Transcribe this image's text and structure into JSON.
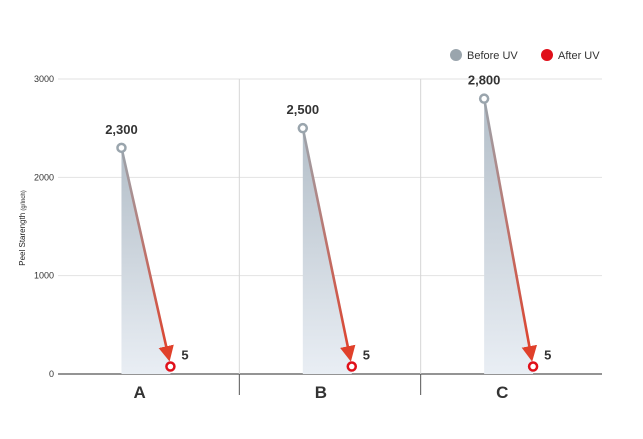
{
  "chart_data": {
    "type": "line",
    "title": "",
    "xlabel": "",
    "ylabel": "Peel Starength",
    "ylabel_unit": "(g/Inch)",
    "ylim": [
      0,
      3000
    ],
    "y_ticks": [
      "0",
      "1000",
      "2000",
      "3000"
    ],
    "categories": [
      "A",
      "B",
      "C"
    ],
    "series": [
      {
        "name": "Before UV",
        "values": [
          2300,
          2500,
          2800
        ],
        "labels": [
          "2,300",
          "2,500",
          "2,800"
        ],
        "color": "#9aa5ad"
      },
      {
        "name": "After UV",
        "values": [
          5,
          5,
          5
        ],
        "labels": [
          "5",
          "5",
          "5"
        ],
        "color": "#e0101a"
      }
    ],
    "grid": true,
    "legend_position": "top-right",
    "arrow_color": "#d8402a",
    "fill_color": "#b8c3cc"
  }
}
